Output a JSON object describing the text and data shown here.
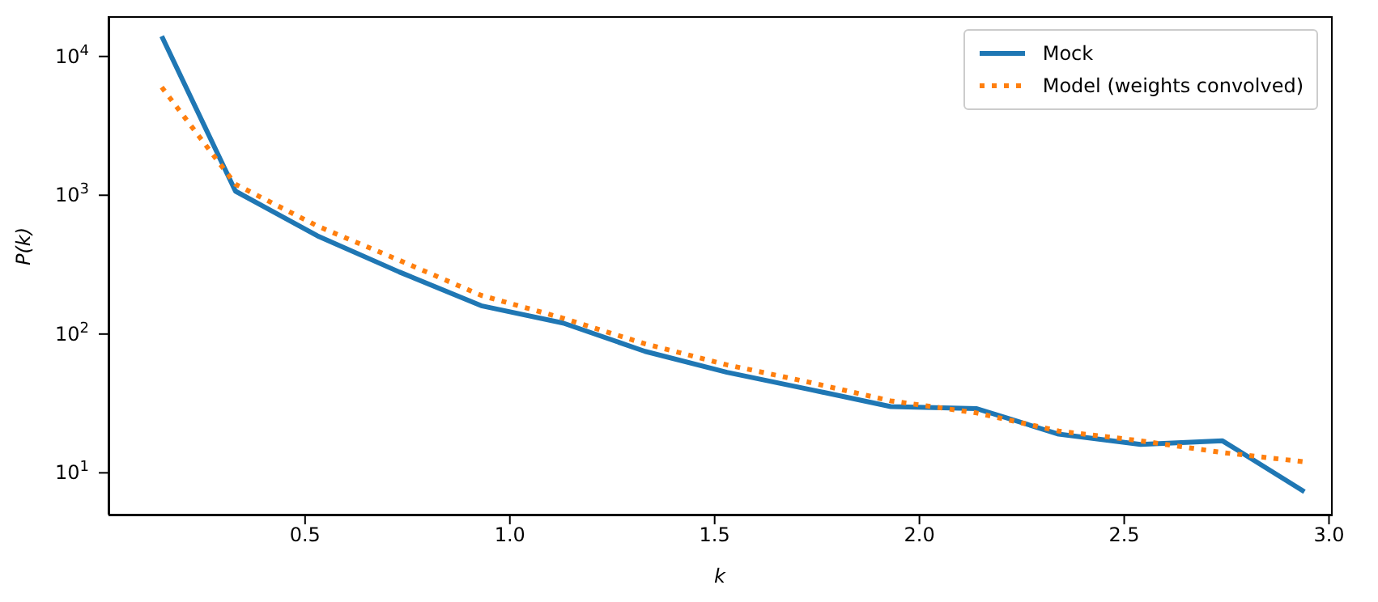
{
  "chart_data": {
    "type": "line",
    "xlabel": "k",
    "ylabel": "P(k)",
    "x": [
      0.15,
      0.33,
      0.53,
      0.73,
      0.93,
      1.13,
      1.33,
      1.53,
      1.73,
      1.93,
      2.14,
      2.34,
      2.54,
      2.74,
      2.94
    ],
    "series": [
      {
        "name": "Mock",
        "color": "#1f77b4",
        "line_style": "solid",
        "values": [
          14000,
          1070,
          510,
          280,
          160,
          120,
          75,
          53,
          40,
          30,
          29,
          19,
          16,
          17,
          7.3
        ]
      },
      {
        "name": "Model (weights convolved)",
        "color": "#ff7f0e",
        "line_style": "dotted",
        "values": [
          6000,
          1200,
          600,
          340,
          190,
          130,
          85,
          60,
          45,
          33,
          27,
          20,
          17,
          14,
          12
        ]
      }
    ],
    "log": "y",
    "xlim": [
      0.02,
      3.005
    ],
    "xticks": [
      0.5,
      {
        "value": 1,
        "label": "1.0"
      },
      1.5,
      {
        "value": 2,
        "label": "2.0"
      },
      2.5,
      {
        "value": 3,
        "label": "3.0"
      }
    ],
    "ylim": [
      5,
      19500
    ],
    "yticks": [
      {
        "value": 10,
        "label": "10$^{1}$"
      },
      {
        "value": 100,
        "label": "10$^{2}$"
      },
      {
        "value": 1000,
        "label": "10$^{3}$"
      },
      {
        "value": 10000,
        "label": "10$^{4}$"
      }
    ],
    "grid": false,
    "legend": "top right",
    "marker": "none"
  }
}
